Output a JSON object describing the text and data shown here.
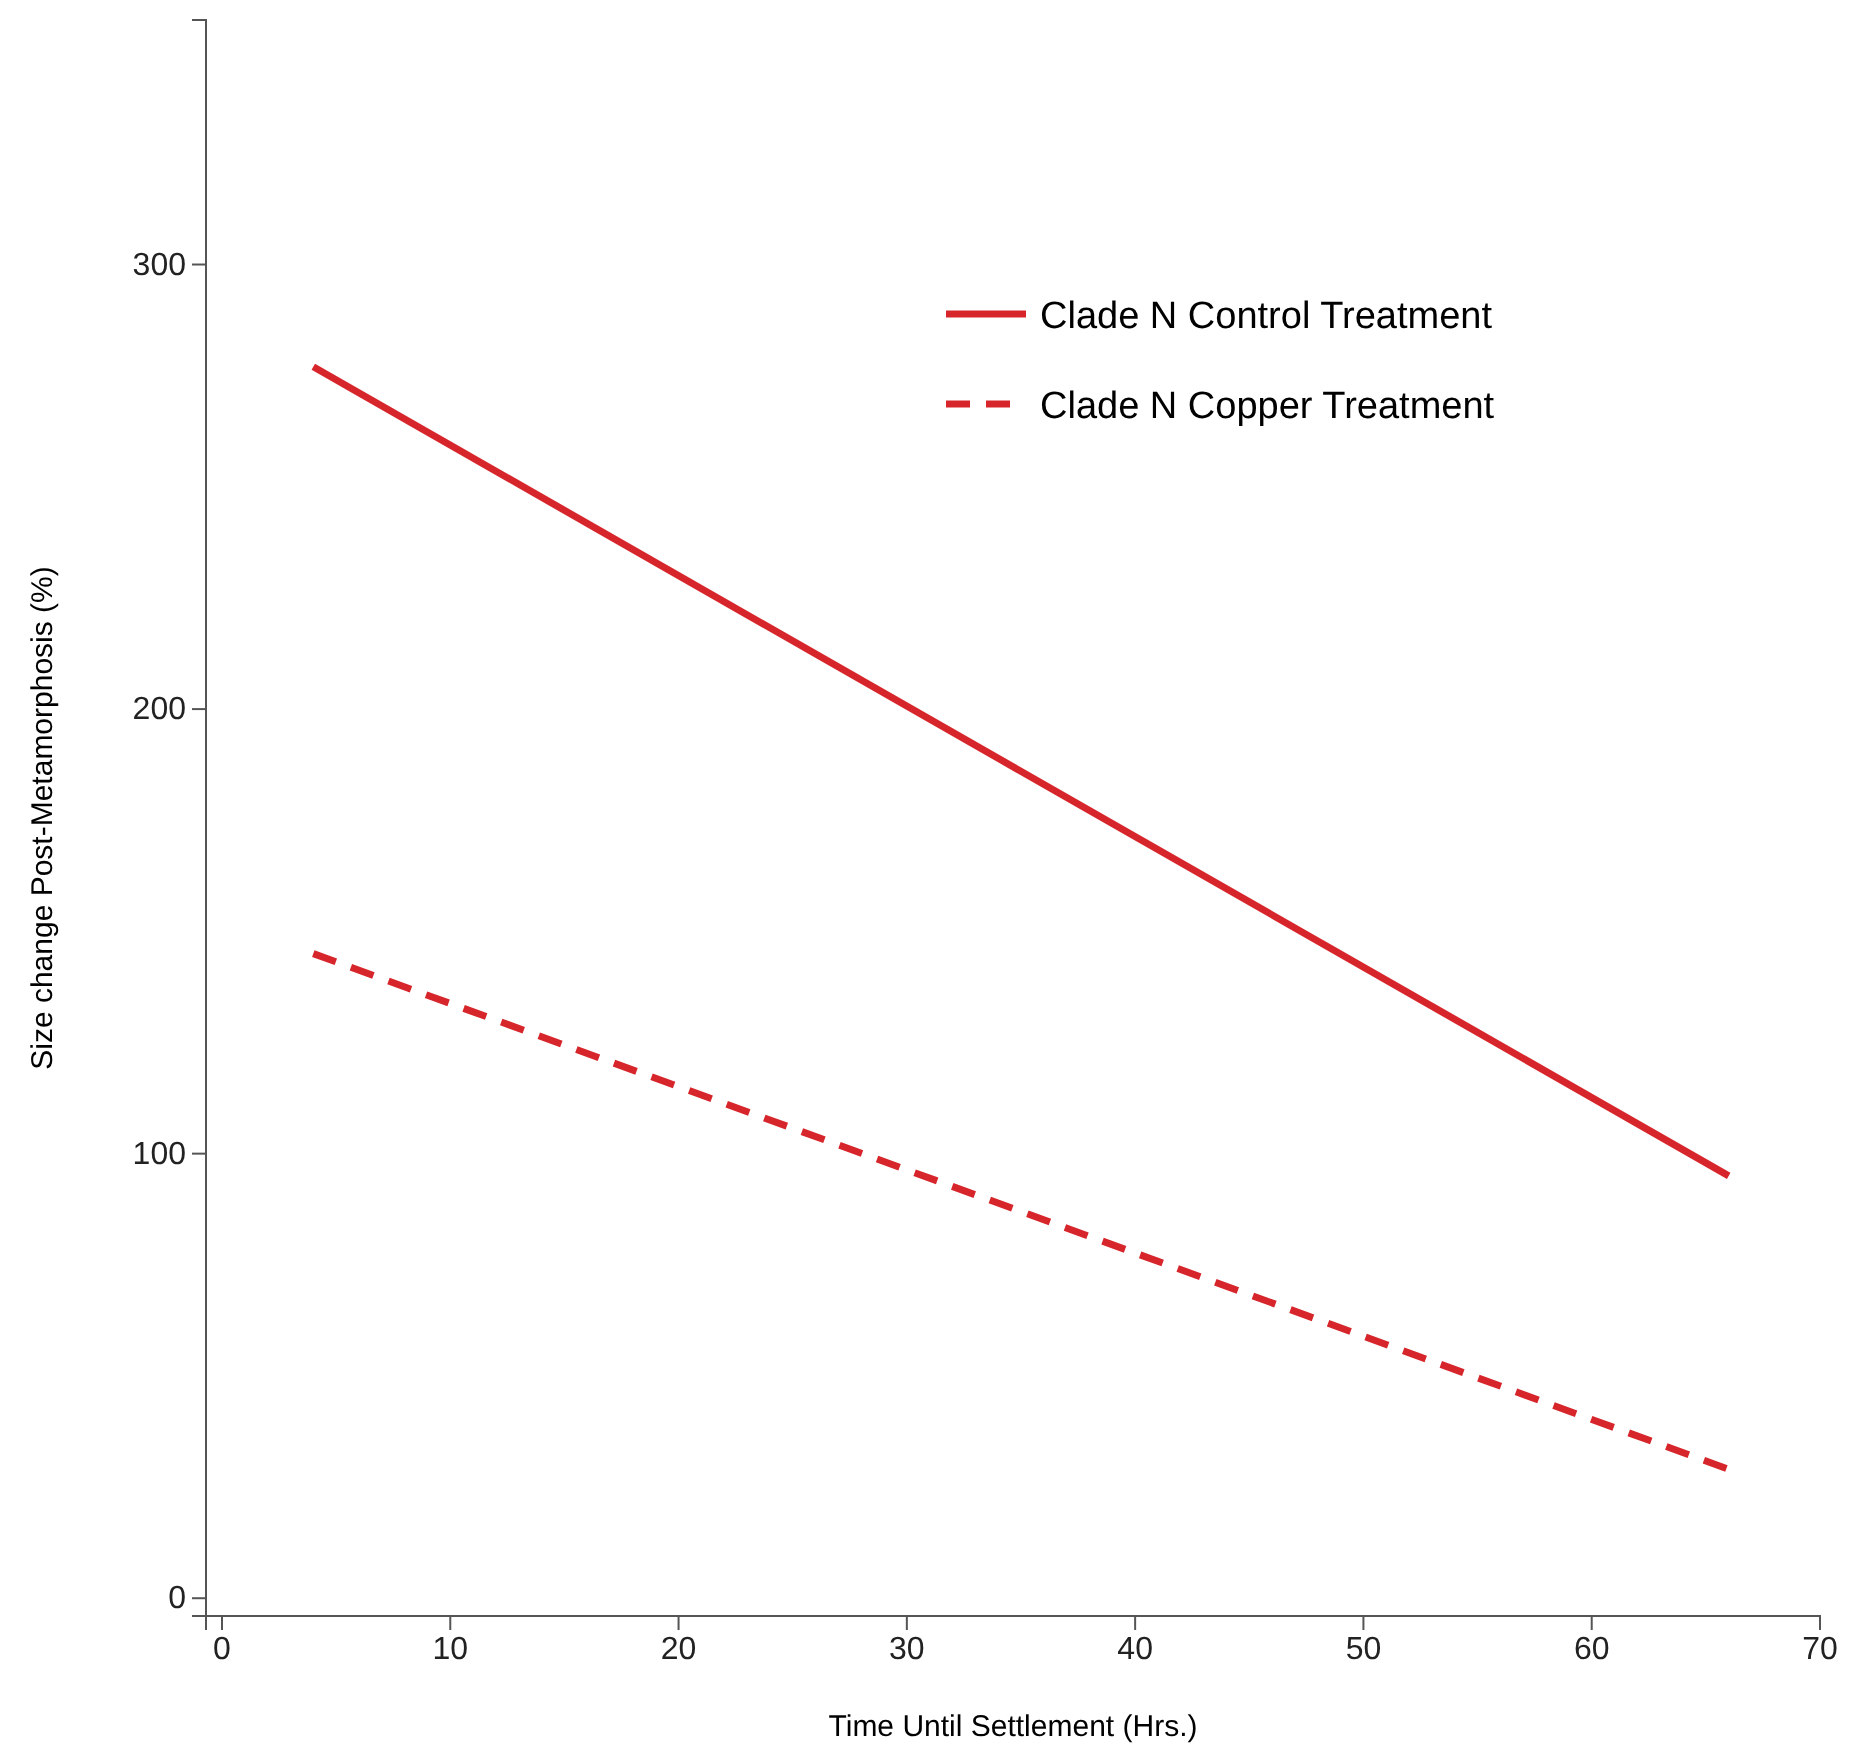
{
  "chart_data": {
    "type": "line",
    "xlabel": "Time Until Settlement (Hrs.)",
    "ylabel": "Size change Post-Metamorphosis (%)",
    "xlim": [
      -0.7,
      70
    ],
    "xticks": [
      0,
      10,
      20,
      30,
      40,
      50,
      60,
      70
    ],
    "ylim": [
      -4,
      355
    ],
    "yticks": [
      0,
      100,
      200,
      300
    ],
    "grid": false,
    "legend": "top right",
    "marker": "none",
    "x": [
      4,
      66
    ],
    "series": [
      {
        "name": "Clade N Control Treatment",
        "color": "#d7262b",
        "values": [
          277,
          95
        ],
        "line_style": "solid"
      },
      {
        "name": "Clade N Copper Treatment",
        "color": "#d7262b",
        "values": [
          145,
          29
        ],
        "line_style": "dashed"
      }
    ]
  }
}
